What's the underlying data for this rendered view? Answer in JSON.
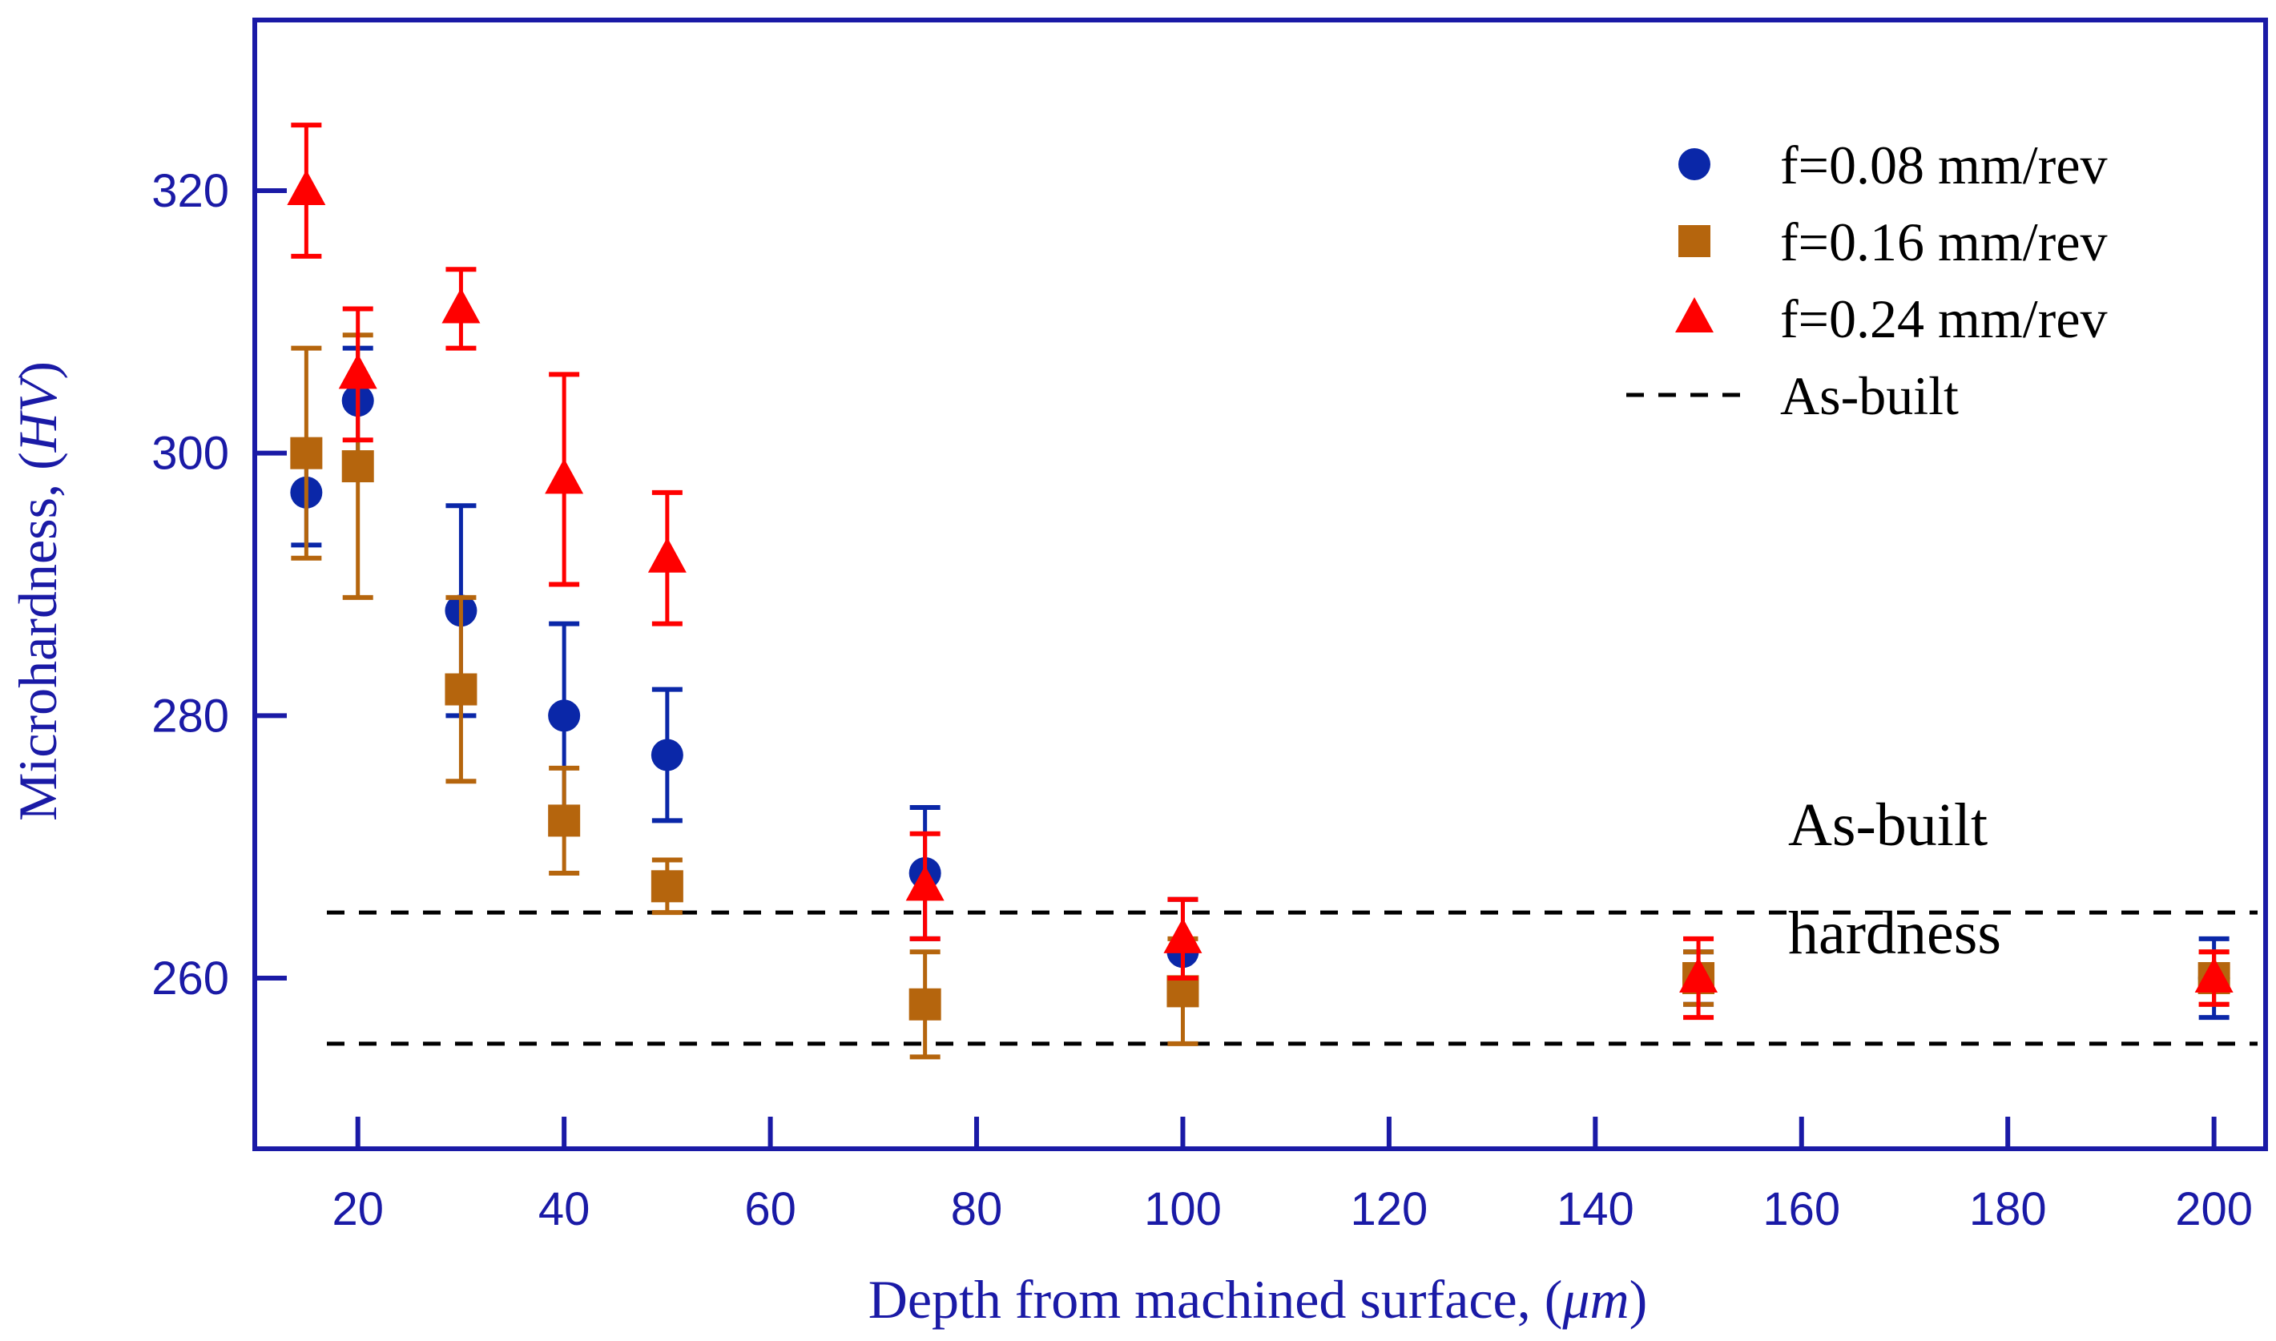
{
  "chart_data": {
    "type": "scatter",
    "title": "",
    "xlabel": "Depth from machined surface, ",
    "xlabel_unit": "μm",
    "ylabel": "Microhardness, ",
    "ylabel_unit": "HV",
    "xlim": [
      10,
      205
    ],
    "ylim": [
      247,
      333
    ],
    "xticks": [
      20,
      40,
      60,
      80,
      100,
      120,
      140,
      160,
      180,
      200
    ],
    "yticks": [
      260,
      280,
      300,
      320
    ],
    "grid": false,
    "legend_position": "top-right",
    "series": [
      {
        "name": "f=0.08 mm/rev",
        "marker": "circle",
        "color": "#0a27a8",
        "x": [
          15,
          20,
          30,
          40,
          50,
          75,
          100,
          150,
          200
        ],
        "y": [
          297,
          304,
          288,
          280,
          277,
          268,
          262,
          260,
          260
        ],
        "err": [
          4,
          4,
          8,
          7,
          5,
          5,
          4,
          2,
          3
        ]
      },
      {
        "name": "f=0.16 mm/rev",
        "marker": "square",
        "color": "#b5650d",
        "x": [
          15,
          20,
          30,
          40,
          50,
          75,
          100,
          150,
          200
        ],
        "y": [
          300,
          299,
          282,
          272,
          267,
          258,
          259,
          260,
          260
        ],
        "err": [
          8,
          10,
          7,
          4,
          2,
          4,
          4,
          2,
          2
        ]
      },
      {
        "name": "f=0.24 mm/rev",
        "marker": "triangle",
        "color": "#ff0000",
        "x": [
          15,
          20,
          30,
          40,
          50,
          75,
          100,
          150,
          200
        ],
        "y": [
          320,
          306,
          311,
          298,
          292,
          267,
          263,
          260,
          260
        ],
        "err": [
          5,
          5,
          3,
          8,
          5,
          4,
          3,
          3,
          2
        ]
      }
    ],
    "reference_lines": {
      "name": "As-built",
      "color": "#000000",
      "style": "dashed",
      "y": [
        265,
        255
      ]
    },
    "annotation": {
      "line1": "As-built",
      "line2": "hardness"
    }
  },
  "colors": {
    "axis": "#1a1aa6",
    "frame": "#1a1aa6"
  }
}
